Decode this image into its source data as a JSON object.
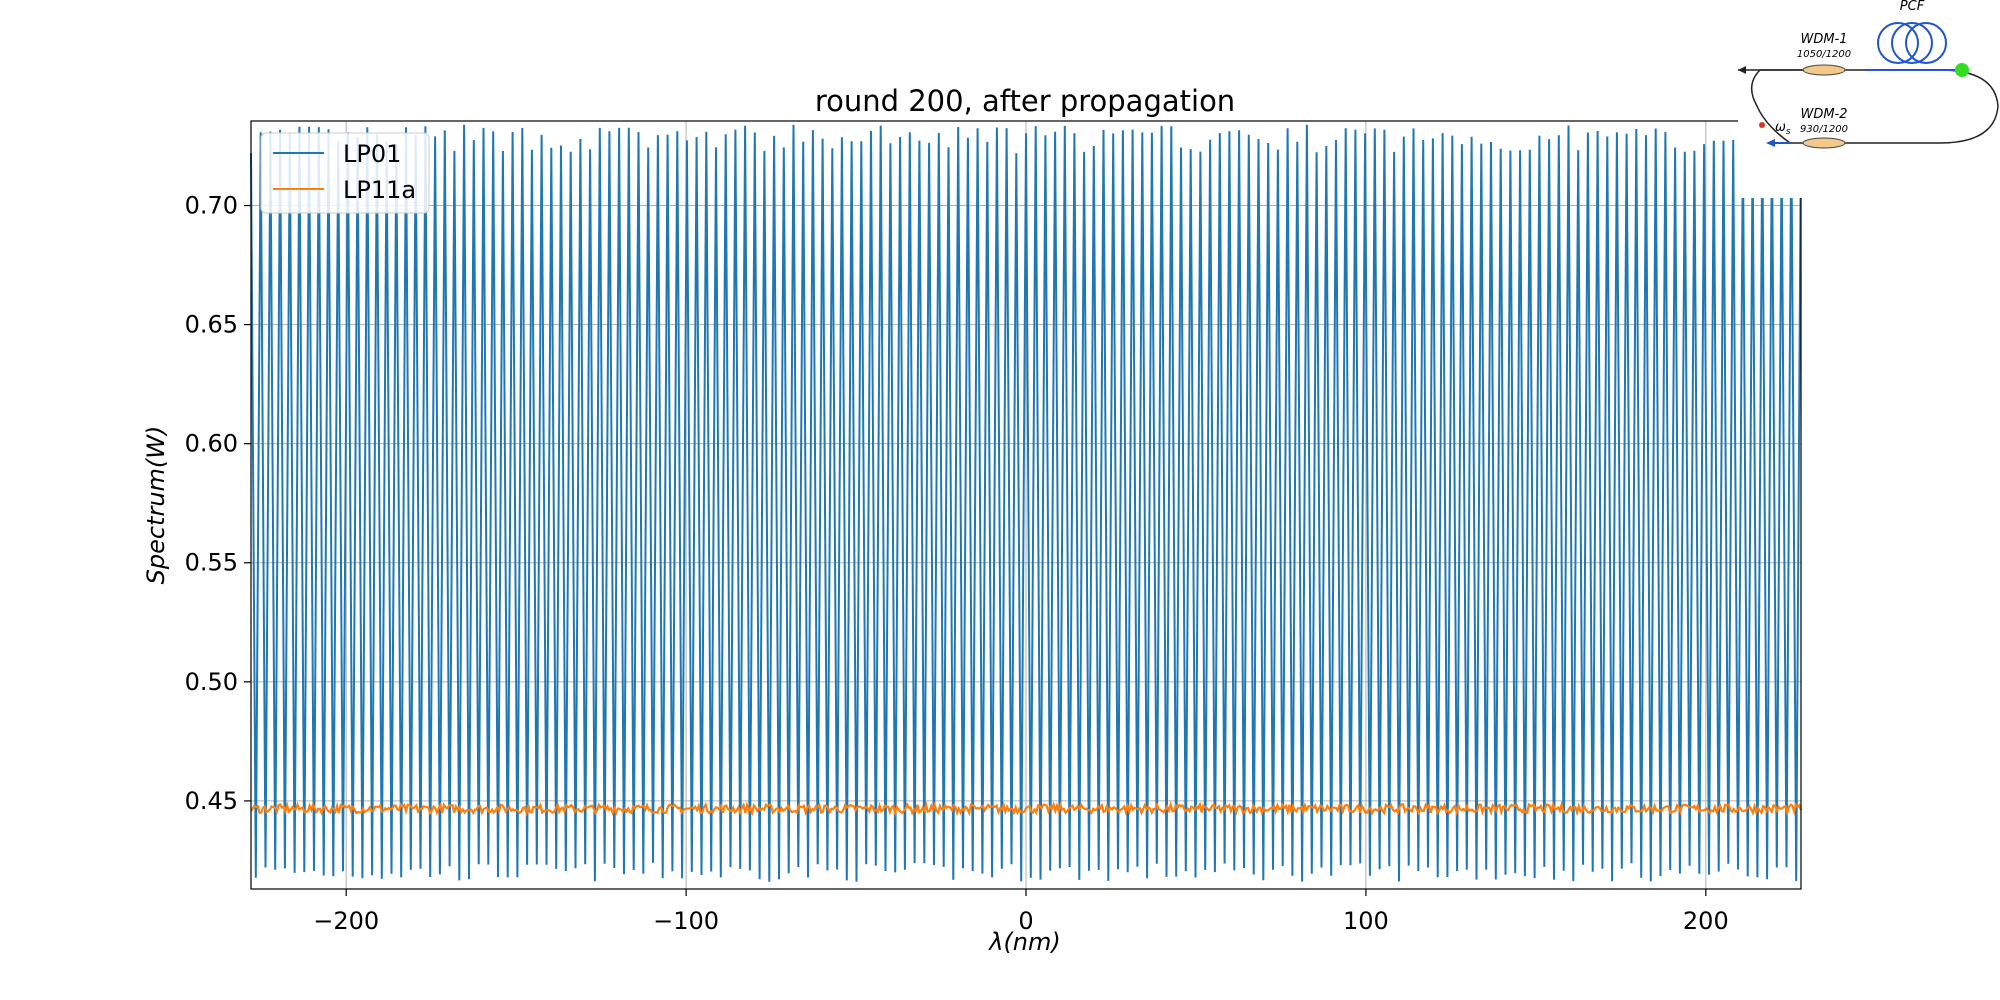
{
  "chart_data": {
    "type": "line",
    "title": "round 200, after propagation",
    "xlabel": "λ(nm)",
    "ylabel": "Spectrum(W)",
    "xlim": [
      -228,
      228
    ],
    "ylim": [
      0.413,
      0.7355
    ],
    "x_ticks": [
      -200,
      -100,
      0,
      100,
      200
    ],
    "x_tick_labels": [
      "−200",
      "−100",
      "0",
      "100",
      "200"
    ],
    "y_ticks": [
      0.45,
      0.5,
      0.55,
      0.6,
      0.65,
      0.7
    ],
    "y_tick_labels": [
      "0.45",
      "0.50",
      "0.55",
      "0.60",
      "0.65",
      "0.70"
    ],
    "grid": true,
    "legend_position": "top-left",
    "series": [
      {
        "name": "LP01",
        "color": "#1f77b4",
        "pattern": "dense periodic oscillation",
        "period_nm": 2.85,
        "min": 0.416,
        "max": 0.734
      },
      {
        "name": "LP11a",
        "color": "#ff7f0e",
        "pattern": "flat noisy",
        "mean": 0.4467,
        "noise_amplitude": 0.0018
      }
    ]
  },
  "inset": {
    "pcf_label": "PCF",
    "wdm1_label": "WDM-1",
    "wdm1_sub": "1050/1200",
    "wdm2_label": "WDM-2",
    "wdm2_sub": "930/1200",
    "omega_label": "ω",
    "omega_sub": "s"
  }
}
